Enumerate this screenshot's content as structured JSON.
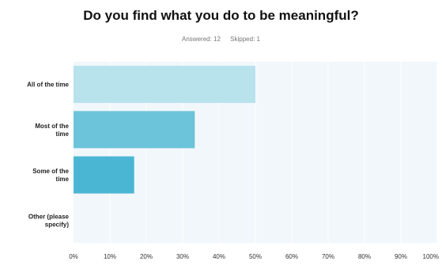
{
  "question": {
    "title": "Do you find what you do to be meaningful?",
    "answered": "Answered: 12",
    "skipped": "Skipped: 1"
  },
  "chart_data": {
    "type": "bar",
    "orientation": "horizontal",
    "title": "Do you find what you do to be meaningful?",
    "categories": [
      [
        "All of the time"
      ],
      [
        "Most of the",
        "time"
      ],
      [
        "Some of the",
        "time"
      ],
      [
        "Other (please",
        "specify)"
      ]
    ],
    "values": [
      50,
      33.33,
      16.67,
      0
    ],
    "unit": "%",
    "xlim": [
      0,
      100
    ],
    "ticks": [
      "0%",
      "10%",
      "20%",
      "30%",
      "40%",
      "50%",
      "60%",
      "70%",
      "80%",
      "90%",
      "100%"
    ],
    "grid": true,
    "colors": [
      "#b8e2ec",
      "#6cc4da",
      "#4bb6d3",
      "#4bb6d3"
    ],
    "background": "#f1f7fb",
    "gridline_color": "#ffffff"
  }
}
